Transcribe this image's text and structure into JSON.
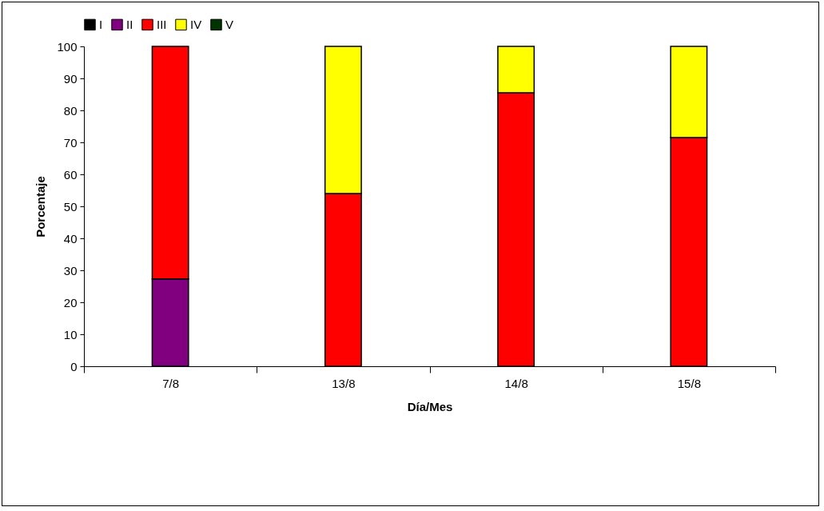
{
  "chart_data": {
    "type": "bar",
    "stacked": true,
    "xlabel": "Día/Mes",
    "ylabel": "Porcentaje",
    "categories": [
      "7/8",
      "13/8",
      "14/8",
      "15/8"
    ],
    "series": [
      {
        "name": "I",
        "color": "#000000",
        "values": [
          0,
          0,
          0,
          0
        ]
      },
      {
        "name": "II",
        "color": "#800080",
        "values": [
          27.3,
          0,
          0,
          0
        ]
      },
      {
        "name": "III",
        "color": "#ff0000",
        "values": [
          72.7,
          54,
          85.5,
          71.5
        ]
      },
      {
        "name": "IV",
        "color": "#ffff00",
        "values": [
          0,
          46,
          14.5,
          28.5
        ]
      },
      {
        "name": "V",
        "color": "#003300",
        "values": [
          0,
          0,
          0,
          0
        ]
      }
    ],
    "ylim": [
      0,
      100
    ],
    "yticks": [
      0,
      10,
      20,
      30,
      40,
      50,
      60,
      70,
      80,
      90,
      100
    ],
    "grid": false,
    "legend": "top"
  }
}
